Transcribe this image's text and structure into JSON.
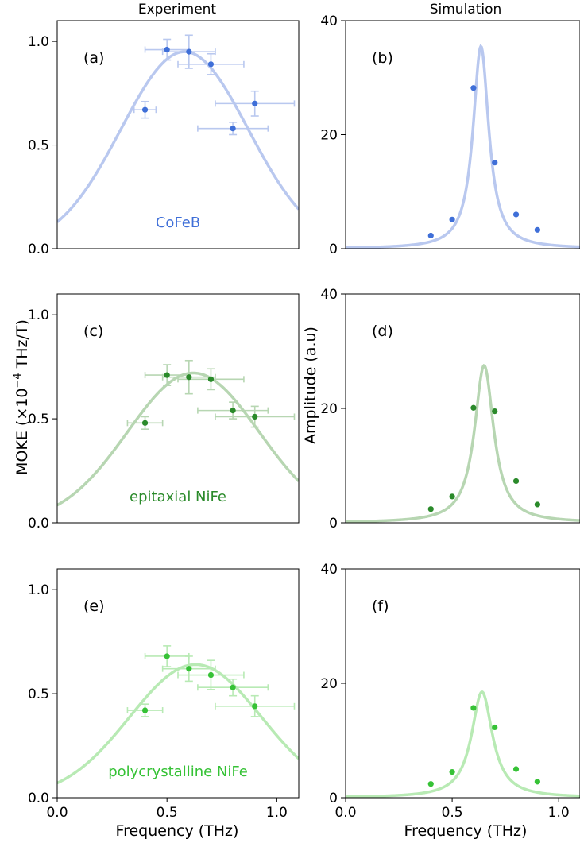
{
  "columns": {
    "left_title": "Experiment",
    "right_title": "Simulation"
  },
  "axes": {
    "shared_xlabel": "Frequency (THz)",
    "left_ylabel": "MOKE (×10",
    "left_ylabel_exp": "−4",
    "left_ylabel_tail": " THz/T)",
    "right_ylabel": "Amplitude (a.u)"
  },
  "colors": {
    "cofeb_points": "#3f6fd8",
    "cofeb_curve": "#b9c8ef",
    "epi_points": "#2a8a2a",
    "epi_curve": "#b7d6b2",
    "poly_points": "#36c236",
    "poly_curve": "#b8eab4"
  },
  "chart_data": [
    {
      "type": "scatter",
      "panel": "(a)",
      "sample_label": "CoFeB",
      "color_key": "cofeb",
      "xlim": [
        0.0,
        1.1
      ],
      "ylim": [
        0.0,
        1.1
      ],
      "xticks": [],
      "yticks": [
        "0.0",
        "0.5",
        "1.0"
      ],
      "x": [
        0.4,
        0.5,
        0.6,
        0.7,
        0.8,
        0.9
      ],
      "y": [
        0.67,
        0.96,
        0.95,
        0.89,
        0.58,
        0.7
      ],
      "xerr": [
        0.05,
        0.1,
        0.12,
        0.15,
        0.16,
        0.18
      ],
      "yerr": [
        0.04,
        0.05,
        0.08,
        0.05,
        0.03,
        0.06
      ],
      "fit": {
        "center": 0.58,
        "amplitude": 0.95,
        "width": 0.29
      }
    },
    {
      "type": "scatter",
      "panel": "(b)",
      "sample_label": "",
      "color_key": "cofeb",
      "xlim": [
        0.0,
        1.1
      ],
      "ylim": [
        0.0,
        40
      ],
      "xticks": [],
      "yticks": [
        "0",
        "20",
        "40"
      ],
      "x": [
        0.4,
        0.5,
        0.6,
        0.7,
        0.8,
        0.9
      ],
      "y": [
        2.3,
        5.1,
        28.2,
        15.1,
        6.0,
        3.3
      ],
      "fit": {
        "center": 0.635,
        "amplitude": 35.5,
        "width": 0.045,
        "offset": 0.0
      }
    },
    {
      "type": "scatter",
      "panel": "(c)",
      "sample_label": "epitaxial NiFe",
      "color_key": "epi",
      "xlim": [
        0.0,
        1.1
      ],
      "ylim": [
        0.0,
        1.1
      ],
      "xticks": [],
      "yticks": [
        "0.0",
        "0.5",
        "1.0"
      ],
      "x": [
        0.4,
        0.5,
        0.6,
        0.7,
        0.8,
        0.9
      ],
      "y": [
        0.48,
        0.71,
        0.7,
        0.69,
        0.54,
        0.51
      ],
      "xerr": [
        0.08,
        0.1,
        0.12,
        0.15,
        0.16,
        0.18
      ],
      "yerr": [
        0.03,
        0.05,
        0.08,
        0.05,
        0.04,
        0.05
      ],
      "fit": {
        "center": 0.62,
        "amplitude": 0.72,
        "width": 0.3
      }
    },
    {
      "type": "scatter",
      "panel": "(d)",
      "sample_label": "",
      "color_key": "epi",
      "xlim": [
        0.0,
        1.1
      ],
      "ylim": [
        0.0,
        40
      ],
      "xticks": [],
      "yticks": [
        "0",
        "20",
        "40"
      ],
      "x": [
        0.4,
        0.5,
        0.6,
        0.7,
        0.8,
        0.9
      ],
      "y": [
        2.4,
        4.6,
        20.1,
        19.5,
        7.3,
        3.2
      ],
      "fit": {
        "center": 0.65,
        "amplitude": 27.5,
        "width": 0.055,
        "offset": 0.0
      }
    },
    {
      "type": "scatter",
      "panel": "(e)",
      "sample_label": "polycrystalline NiFe",
      "color_key": "poly",
      "xlim": [
        0.0,
        1.1
      ],
      "ylim": [
        0.0,
        1.1
      ],
      "xticks": [
        "0.0",
        "0.5",
        "1.0"
      ],
      "yticks": [
        "0.0",
        "0.5",
        "1.0"
      ],
      "x": [
        0.4,
        0.5,
        0.6,
        0.7,
        0.8,
        0.9
      ],
      "y": [
        0.42,
        0.68,
        0.62,
        0.59,
        0.53,
        0.44
      ],
      "xerr": [
        0.08,
        0.1,
        0.12,
        0.15,
        0.16,
        0.18
      ],
      "yerr": [
        0.03,
        0.05,
        0.06,
        0.07,
        0.04,
        0.05
      ],
      "fit": {
        "center": 0.63,
        "amplitude": 0.64,
        "width": 0.3
      }
    },
    {
      "type": "scatter",
      "panel": "(f)",
      "sample_label": "",
      "color_key": "poly",
      "xlim": [
        0.0,
        1.1
      ],
      "ylim": [
        0.0,
        40
      ],
      "xticks": [
        "0.0",
        "0.5",
        "1.0"
      ],
      "yticks": [
        "0",
        "20",
        "40"
      ],
      "x": [
        0.4,
        0.5,
        0.6,
        0.7,
        0.8,
        0.9
      ],
      "y": [
        2.4,
        4.5,
        15.7,
        12.3,
        5.0,
        2.8
      ],
      "fit": {
        "center": 0.64,
        "amplitude": 18.5,
        "width": 0.06,
        "offset": 0.0
      }
    }
  ]
}
